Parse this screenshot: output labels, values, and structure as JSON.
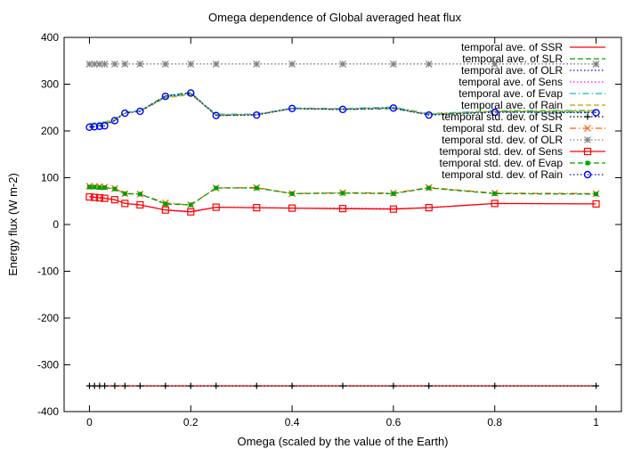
{
  "chart_data": {
    "type": "line",
    "title": "Omega dependence of Global averaged heat flux",
    "xlabel": "Omega (scaled by the value of the Earth)",
    "ylabel": "Energy flux (W m-2)",
    "xlim": [
      -0.05,
      1.05
    ],
    "ylim": [
      -400,
      400
    ],
    "xticks": [
      0,
      0.2,
      0.4,
      0.6,
      0.8,
      1
    ],
    "xtick_labels": [
      "0",
      "0.2",
      "0.4",
      "0.6",
      "0.8",
      "1"
    ],
    "yticks": [
      -400,
      -300,
      -200,
      -100,
      0,
      100,
      200,
      300,
      400
    ],
    "ytick_labels": [
      "-400",
      "-300",
      "-200",
      "-100",
      "0",
      "100",
      "200",
      "300",
      "400"
    ],
    "legend_position": "top-right",
    "x": [
      0,
      0.01,
      0.02,
      0.03,
      0.05,
      0.07,
      0.1,
      0.15,
      0.2,
      0.25,
      0.33,
      0.4,
      0.5,
      0.6,
      0.67,
      0.8,
      1.0
    ],
    "series": [
      {
        "name": "temporal ave. of SSR",
        "color": "#ff0000",
        "style": "solid",
        "marker": "none",
        "values": [
          -345,
          -345,
          -345,
          -345,
          -345,
          -345,
          -345,
          -345,
          -345,
          -345,
          -345,
          -345,
          -345,
          -345,
          -345,
          -345,
          -345
        ]
      },
      {
        "name": "temporal ave. of SLR",
        "color": "#00a000",
        "style": "dashed",
        "marker": "none",
        "values": [
          210,
          210,
          212,
          215,
          222,
          240,
          243,
          275,
          282,
          233,
          235,
          248,
          246,
          248,
          235,
          241,
          240
        ]
      },
      {
        "name": "temporal ave. of OLR",
        "color": "#0000ff",
        "style": "dotted",
        "marker": "none",
        "values": [
          343,
          343,
          343,
          343,
          343,
          343,
          343,
          343,
          343,
          343,
          343,
          343,
          343,
          343,
          343,
          343,
          343
        ]
      },
      {
        "name": "temporal ave. of Sens",
        "color": "#ff00ff",
        "style": "dotted",
        "marker": "none",
        "values": [
          60,
          59,
          58,
          57,
          53,
          45,
          42,
          31,
          28,
          37,
          36,
          35,
          35,
          34,
          36,
          45,
          44
        ]
      },
      {
        "name": "temporal ave. of Evap",
        "color": "#00c0c0",
        "style": "dashdot",
        "marker": "none",
        "values": [
          216,
          217,
          218,
          219,
          225,
          239,
          243,
          272,
          279,
          236,
          236,
          249,
          248,
          251,
          237,
          243,
          244
        ]
      },
      {
        "name": "temporal ave. of Rain",
        "color": "#c0a000",
        "style": "dashed",
        "marker": "none",
        "values": [
          215,
          216,
          217,
          218,
          224,
          238,
          242,
          271,
          278,
          235,
          235,
          248,
          247,
          250,
          236,
          242,
          243
        ]
      },
      {
        "name": "temporal std. dev. of SSR",
        "color": "#000000",
        "style": "dotted",
        "marker": "plus",
        "values": [
          -345,
          -345,
          -345,
          -345,
          -345,
          -345,
          -345,
          -345,
          -345,
          -345,
          -345,
          -345,
          -345,
          -345,
          -345,
          -345,
          -345
        ]
      },
      {
        "name": "temporal std. dev. of SLR",
        "color": "#ff6000",
        "style": "dashdot",
        "marker": "x",
        "values": [
          82,
          81,
          81,
          80,
          77,
          66,
          65,
          46,
          42,
          78,
          79,
          66,
          68,
          67,
          79,
          67,
          66
        ]
      },
      {
        "name": "temporal std. dev. of OLR",
        "color": "#808080",
        "style": "dotted",
        "marker": "star",
        "values": [
          343,
          343,
          343,
          343,
          343,
          343,
          343,
          343,
          343,
          343,
          343,
          343,
          343,
          343,
          343,
          343,
          343
        ]
      },
      {
        "name": "temporal std. dev. of Sens",
        "color": "#ff0000",
        "style": "solid",
        "marker": "square",
        "values": [
          59,
          58,
          57,
          56,
          53,
          45,
          42,
          31,
          27,
          37,
          36,
          35,
          34,
          33,
          36,
          45,
          44
        ]
      },
      {
        "name": "temporal std. dev. of Evap",
        "color": "#00a000",
        "style": "dashed",
        "marker": "filledsquare",
        "values": [
          80,
          80,
          79,
          79,
          76,
          66,
          65,
          44,
          42,
          78,
          78,
          66,
          67,
          66,
          78,
          66,
          65
        ]
      },
      {
        "name": "temporal std. dev. of Rain",
        "color": "#0000ff",
        "style": "dotted",
        "marker": "circle",
        "values": [
          208,
          209,
          210,
          211,
          222,
          238,
          242,
          274,
          281,
          233,
          234,
          248,
          246,
          249,
          234,
          240,
          239
        ]
      }
    ]
  }
}
